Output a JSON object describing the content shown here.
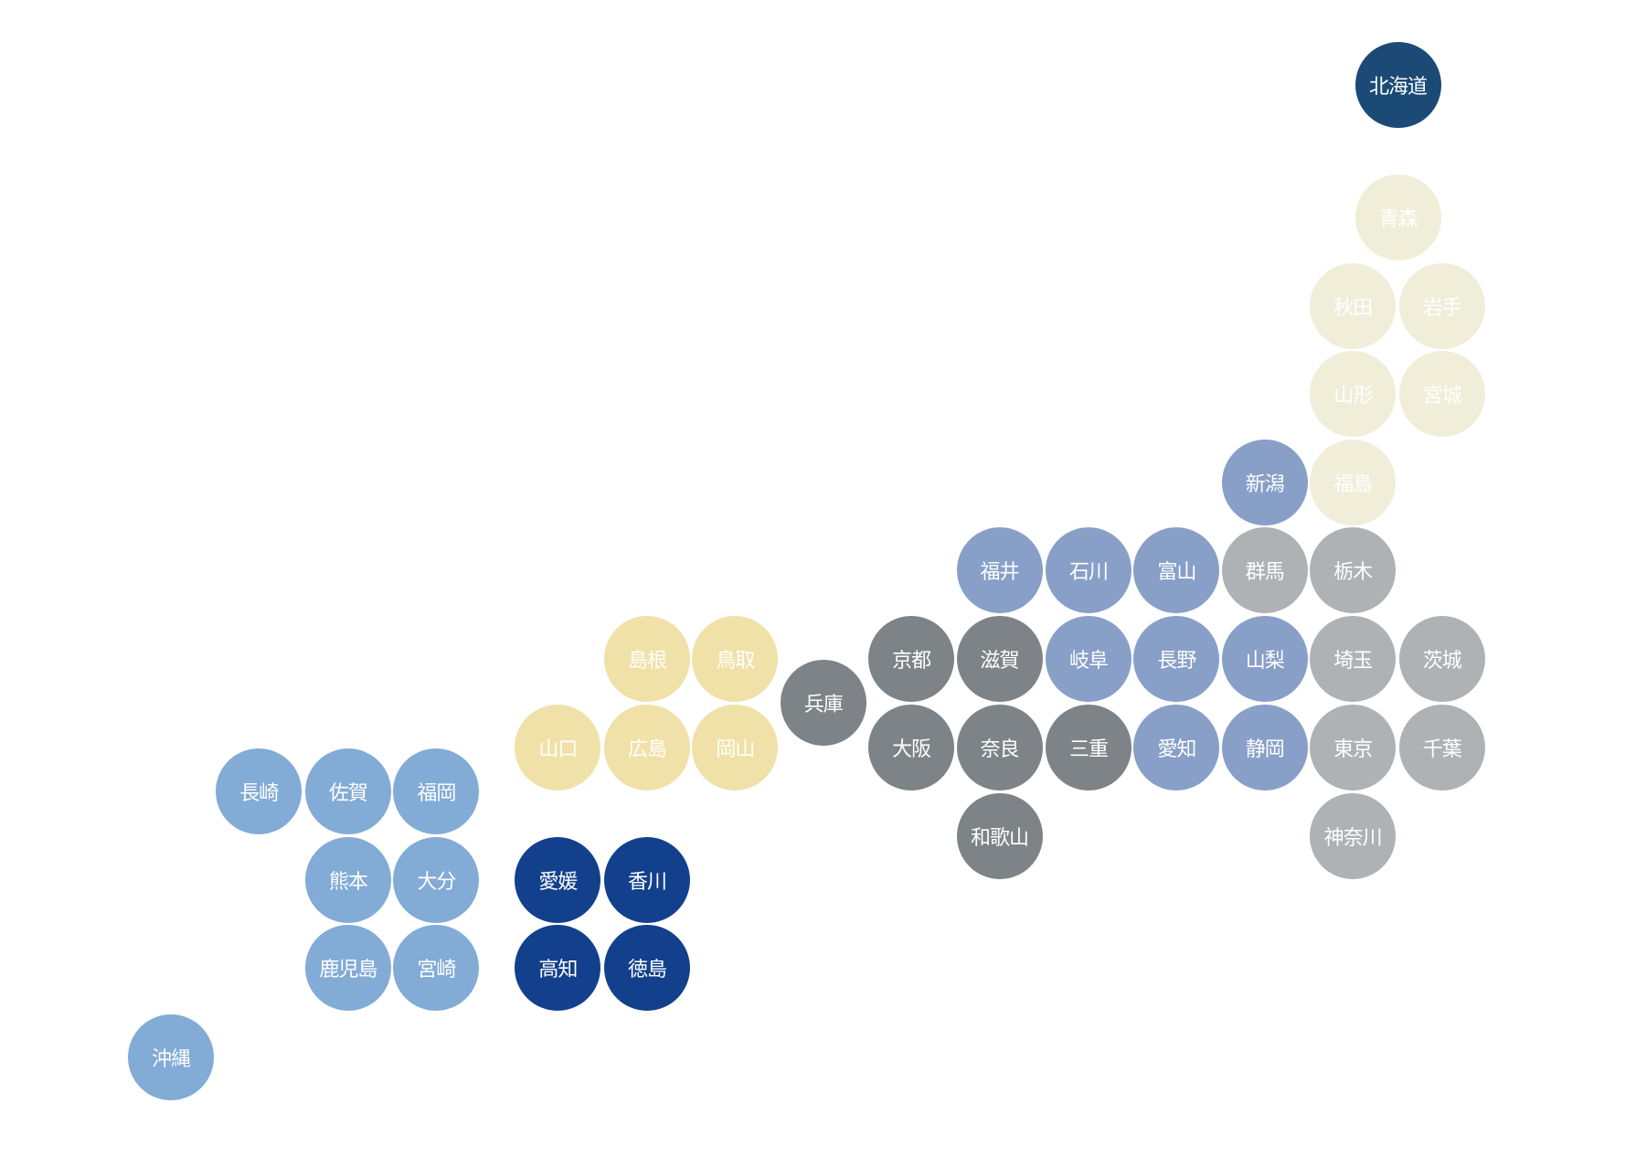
{
  "regions": {
    "hokkaido": {
      "color": "#1a4a75"
    },
    "tohoku": {
      "color": "#f0eed9"
    },
    "kanto": {
      "color": "#aeb2b5"
    },
    "chubu": {
      "color": "#889fc8"
    },
    "kansai": {
      "color": "#7d8386"
    },
    "chugoku": {
      "color": "#f0e1a8"
    },
    "shikoku": {
      "color": "#12408c"
    },
    "kyushu": {
      "color": "#82abd6"
    }
  },
  "text_color": "#ffffff",
  "prefectures": [
    {
      "name": "北海道",
      "region": "hokkaido"
    },
    {
      "name": "青森",
      "region": "tohoku"
    },
    {
      "name": "秋田",
      "region": "tohoku"
    },
    {
      "name": "岩手",
      "region": "tohoku"
    },
    {
      "name": "山形",
      "region": "tohoku"
    },
    {
      "name": "宮城",
      "region": "tohoku"
    },
    {
      "name": "福島",
      "region": "tohoku"
    },
    {
      "name": "新潟",
      "region": "chubu"
    },
    {
      "name": "福井",
      "region": "chubu"
    },
    {
      "name": "石川",
      "region": "chubu"
    },
    {
      "name": "富山",
      "region": "chubu"
    },
    {
      "name": "群馬",
      "region": "kanto"
    },
    {
      "name": "栃木",
      "region": "kanto"
    },
    {
      "name": "京都",
      "region": "kansai"
    },
    {
      "name": "滋賀",
      "region": "kansai"
    },
    {
      "name": "岐阜",
      "region": "chubu"
    },
    {
      "name": "長野",
      "region": "chubu"
    },
    {
      "name": "山梨",
      "region": "chubu"
    },
    {
      "name": "埼玉",
      "region": "kanto"
    },
    {
      "name": "茨城",
      "region": "kanto"
    },
    {
      "name": "兵庫",
      "region": "kansai"
    },
    {
      "name": "大阪",
      "region": "kansai"
    },
    {
      "name": "奈良",
      "region": "kansai"
    },
    {
      "name": "三重",
      "region": "kansai"
    },
    {
      "name": "愛知",
      "region": "chubu"
    },
    {
      "name": "静岡",
      "region": "chubu"
    },
    {
      "name": "東京",
      "region": "kanto"
    },
    {
      "name": "千葉",
      "region": "kanto"
    },
    {
      "name": "和歌山",
      "region": "kansai"
    },
    {
      "name": "神奈川",
      "region": "kanto"
    },
    {
      "name": "島根",
      "region": "chugoku"
    },
    {
      "name": "鳥取",
      "region": "chugoku"
    },
    {
      "name": "山口",
      "region": "chugoku"
    },
    {
      "name": "広島",
      "region": "chugoku"
    },
    {
      "name": "岡山",
      "region": "chugoku"
    },
    {
      "name": "長崎",
      "region": "kyushu"
    },
    {
      "name": "佐賀",
      "region": "kyushu"
    },
    {
      "name": "福岡",
      "region": "kyushu"
    },
    {
      "name": "熊本",
      "region": "kyushu"
    },
    {
      "name": "大分",
      "region": "kyushu"
    },
    {
      "name": "鹿児島",
      "region": "kyushu"
    },
    {
      "name": "宮崎",
      "region": "kyushu"
    },
    {
      "name": "沖縄",
      "region": "kyushu"
    },
    {
      "name": "愛媛",
      "region": "shikoku"
    },
    {
      "name": "香川",
      "region": "shikoku"
    },
    {
      "name": "高知",
      "region": "shikoku"
    },
    {
      "name": "徳島",
      "region": "shikoku"
    }
  ]
}
